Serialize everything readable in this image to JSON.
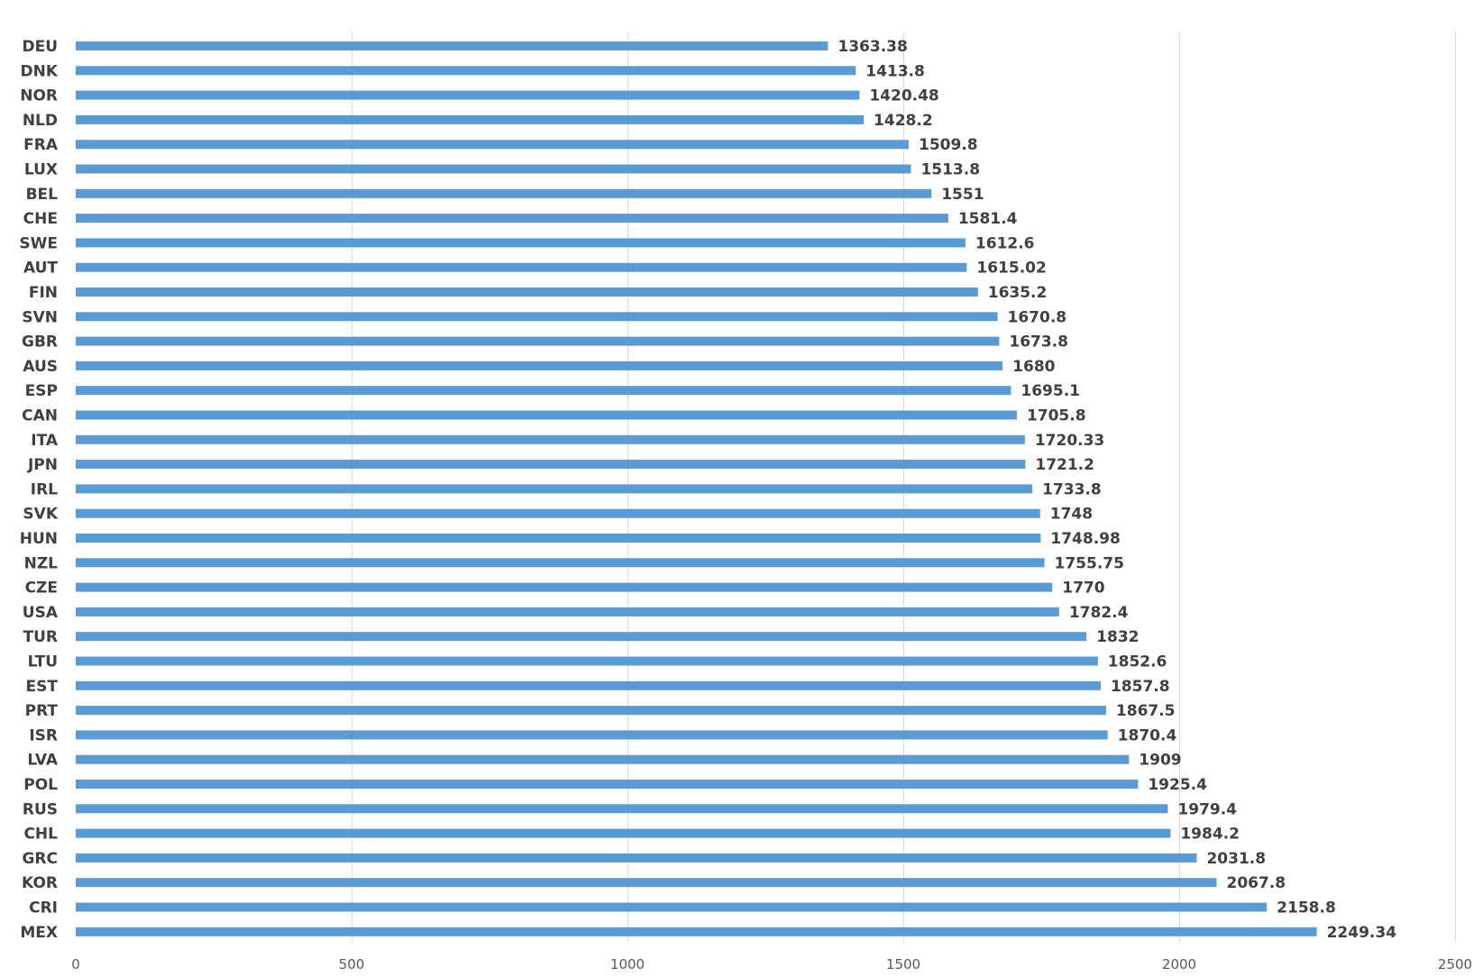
{
  "chart_data": {
    "type": "bar",
    "orientation": "horizontal",
    "title": "",
    "xlabel": "",
    "ylabel": "",
    "categories": [
      "DEU",
      "DNK",
      "NOR",
      "NLD",
      "FRA",
      "LUX",
      "BEL",
      "CHE",
      "SWE",
      "AUT",
      "FIN",
      "SVN",
      "GBR",
      "AUS",
      "ESP",
      "CAN",
      "ITA",
      "JPN",
      "IRL",
      "SVK",
      "HUN",
      "NZL",
      "CZE",
      "USA",
      "TUR",
      "LTU",
      "EST",
      "PRT",
      "ISR",
      "LVA",
      "POL",
      "RUS",
      "CHL",
      "GRC",
      "KOR",
      "CRI",
      "MEX"
    ],
    "values": [
      1363.38,
      1413.8,
      1420.48,
      1428.2,
      1509.8,
      1513.8,
      1551,
      1581.4,
      1612.6,
      1615.02,
      1635.2,
      1670.8,
      1673.8,
      1680,
      1695.1,
      1705.8,
      1720.33,
      1721.2,
      1733.8,
      1748,
      1748.98,
      1755.75,
      1770,
      1782.4,
      1832,
      1852.6,
      1857.8,
      1867.5,
      1870.4,
      1909,
      1925.4,
      1979.4,
      1984.2,
      2031.8,
      2067.8,
      2158.8,
      2249.34
    ],
    "value_labels": [
      "1363.38",
      "1413.8",
      "1420.48",
      "1428.2",
      "1509.8",
      "1513.8",
      "1551",
      "1581.4",
      "1612.6",
      "1615.02",
      "1635.2",
      "1670.8",
      "1673.8",
      "1680",
      "1695.1",
      "1705.8",
      "1720.33",
      "1721.2",
      "1733.8",
      "1748",
      "1748.98",
      "1755.75",
      "1770",
      "1782.4",
      "1832",
      "1852.6",
      "1857.8",
      "1867.5",
      "1870.4",
      "1909",
      "1925.4",
      "1979.4",
      "1984.2",
      "2031.8",
      "2067.8",
      "2158.8",
      "2249.34"
    ],
    "xlim": [
      0,
      2500
    ],
    "xticks": [
      0,
      500,
      1000,
      1500,
      2000,
      2500
    ],
    "xtick_labels": [
      "0",
      "500",
      "1000",
      "1500",
      "2000",
      "2500"
    ],
    "grid": "vertical",
    "legend": "none",
    "bar_color": "#5b9bd5",
    "grid_color": "#d9d9d9",
    "label_color": "#404040"
  }
}
